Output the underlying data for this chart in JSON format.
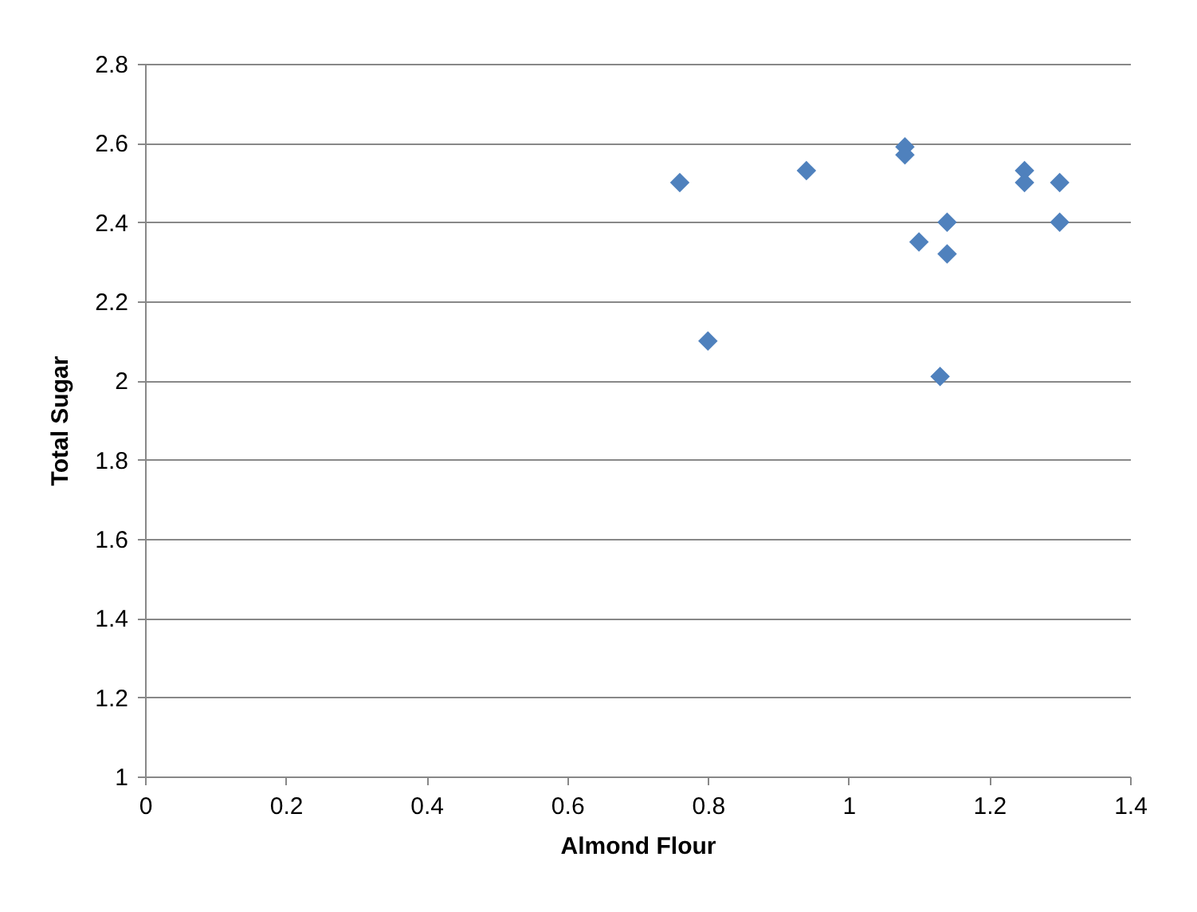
{
  "chart_data": {
    "type": "scatter",
    "xlabel": "Almond Flour",
    "ylabel": "Total Sugar",
    "x": [
      0.76,
      0.8,
      0.94,
      1.08,
      1.08,
      1.1,
      1.14,
      1.14,
      1.13,
      1.25,
      1.25,
      1.3,
      1.3
    ],
    "series": [
      {
        "color": "#4f81bd",
        "values": [
          2.5,
          2.1,
          2.53,
          2.59,
          2.57,
          2.35,
          2.4,
          2.32,
          2.01,
          2.53,
          2.5,
          2.5,
          2.4
        ]
      }
    ],
    "xlim": [
      0,
      1.4
    ],
    "xticks": [
      0,
      0.2,
      0.4,
      0.6,
      0.8,
      1,
      1.2,
      1.4
    ],
    "ylim": [
      1,
      2.8
    ],
    "yticks": [
      1,
      1.2,
      1.4,
      1.6,
      1.8,
      2,
      2.2,
      2.4,
      2.6,
      2.8
    ],
    "grid": "y",
    "marker": "diamond"
  }
}
